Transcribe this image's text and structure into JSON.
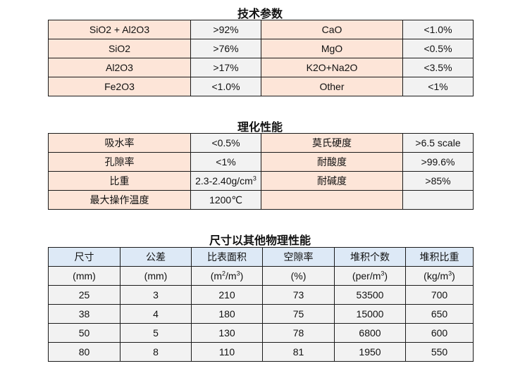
{
  "tech": {
    "title": "技术参数",
    "rows": [
      [
        "SiO2 + Al2O3",
        ">92%",
        "CaO",
        "<1.0%"
      ],
      [
        "SiO2",
        ">76%",
        "MgO",
        "<0.5%"
      ],
      [
        "Al2O3",
        ">17%",
        "K2O+Na2O",
        "<3.5%"
      ],
      [
        "Fe2O3",
        "<1.0%",
        "Other",
        "<1%"
      ]
    ]
  },
  "phys": {
    "title": "理化性能",
    "rows": [
      [
        "吸水率",
        "<0.5%",
        "莫氏硬度",
        ">6.5 scale"
      ],
      [
        "孔隙率",
        "<1%",
        "耐酸度",
        ">99.6%"
      ],
      [
        "比重",
        "2.3-2.40g/cm",
        "耐碱度",
        ">85%"
      ],
      [
        "最大操作温度",
        "1200℃",
        "",
        ""
      ]
    ],
    "density_sup": "3"
  },
  "size": {
    "title": "尺寸以其他物理性能",
    "headers": [
      "尺寸",
      "公差",
      "比表面积",
      "空隙率",
      "堆积个数",
      "堆积比重"
    ],
    "units": [
      [
        "(mm)"
      ],
      [
        "(mm)"
      ],
      [
        "(m",
        "2",
        "/m",
        "3",
        ")"
      ],
      [
        "(%)"
      ],
      [
        "(per/m",
        "3",
        ")"
      ],
      [
        "(kg/m",
        "3",
        ")"
      ]
    ],
    "rows": [
      [
        "25",
        "3",
        "210",
        "73",
        "53500",
        "700"
      ],
      [
        "38",
        "4",
        "180",
        "75",
        "15000",
        "650"
      ],
      [
        "50",
        "5",
        "130",
        "78",
        "6800",
        "600"
      ],
      [
        "80",
        "8",
        "110",
        "81",
        "1950",
        "550"
      ]
    ]
  },
  "colors": {
    "label_bg": "#fde5d8",
    "value_bg": "#f2f2f2",
    "header_bg": "#dde9f6"
  }
}
